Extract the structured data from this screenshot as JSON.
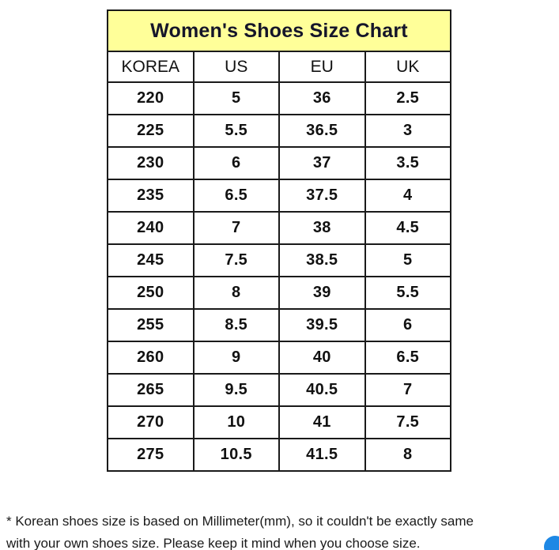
{
  "chart_data": {
    "type": "table",
    "title": "Women's Shoes Size Chart",
    "columns": [
      "KOREA",
      "US",
      "EU",
      "UK"
    ],
    "rows": [
      [
        "220",
        "5",
        "36",
        "2.5"
      ],
      [
        "225",
        "5.5",
        "36.5",
        "3"
      ],
      [
        "230",
        "6",
        "37",
        "3.5"
      ],
      [
        "235",
        "6.5",
        "37.5",
        "4"
      ],
      [
        "240",
        "7",
        "38",
        "4.5"
      ],
      [
        "245",
        "7.5",
        "38.5",
        "5"
      ],
      [
        "250",
        "8",
        "39",
        "5.5"
      ],
      [
        "255",
        "8.5",
        "39.5",
        "6"
      ],
      [
        "260",
        "9",
        "40",
        "6.5"
      ],
      [
        "265",
        "9.5",
        "40.5",
        "7"
      ],
      [
        "270",
        "10",
        "41",
        "7.5"
      ],
      [
        "275",
        "10.5",
        "41.5",
        "8"
      ]
    ],
    "layout_hints": {
      "title_background": "#FFFF99",
      "border_color": "#1a1a1a",
      "grid": "on"
    }
  },
  "footnote": {
    "line1": "* Korean shoes size is based on Millimeter(mm), so it couldn't be exactly same",
    "line2": "with your own shoes size. Please keep it mind when you choose size."
  },
  "colors": {
    "title_bg": "#FFFF99",
    "border": "#1a1a1a",
    "chat_bubble_blue": "#1e88e5"
  }
}
